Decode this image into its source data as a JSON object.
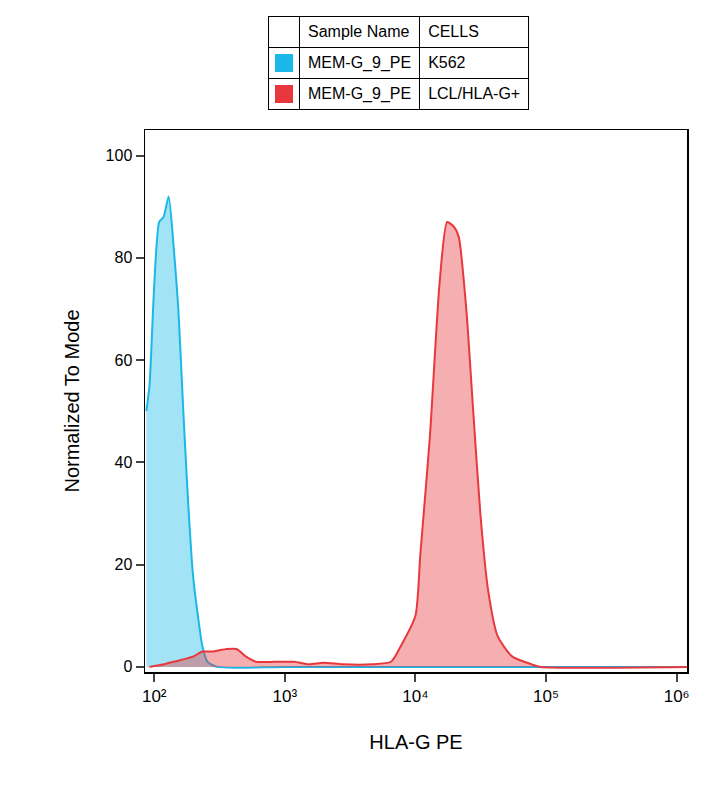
{
  "chart_data": {
    "type": "histogram_overlay",
    "xlabel": "HLA-G PE",
    "ylabel": "Normalized To Mode",
    "log": "x",
    "grid": false,
    "legend_header": [
      "Sample Name",
      "CELLS"
    ],
    "xlim": [
      85,
      1200000
    ],
    "ylim": [
      -1,
      105
    ],
    "xticks": [
      {
        "value": 100,
        "label": "10²"
      },
      {
        "value": 1000,
        "label": "10³"
      },
      {
        "value": 10000,
        "label": "10⁴"
      },
      {
        "value": 100000,
        "label": "10⁵"
      },
      {
        "value": 1000000,
        "label": "10⁶"
      }
    ],
    "yticks": [
      0,
      20,
      40,
      60,
      80,
      100
    ],
    "series": [
      {
        "name": "K562",
        "sample": "MEM-G_9_PE",
        "color": "#1ab8e8",
        "x": [
          87,
          92,
          109,
          118,
          129,
          141,
          153,
          167,
          182,
          198,
          216,
          234,
          256,
          303,
          1000,
          10000,
          100000,
          1200000
        ],
        "values": [
          50,
          55,
          87,
          88,
          92,
          82,
          70,
          50,
          32,
          18,
          10,
          4,
          1,
          0,
          0,
          0,
          0,
          0
        ]
      },
      {
        "name": "LCL/HLA-G+",
        "sample": "MEM-G_9_PE",
        "color": "#e8383d",
        "x": [
          92,
          109,
          141,
          198,
          234,
          278,
          359,
          427,
          506,
          600,
          840,
          1180,
          1530,
          1980,
          2780,
          4650,
          6500,
          7700,
          10000,
          10900,
          12900,
          15300,
          17500,
          19800,
          21500,
          24500,
          27700,
          31400,
          36000,
          42600,
          55200,
          77600,
          91000,
          1200000
        ],
        "values": [
          0,
          0.3,
          1,
          2,
          3,
          3,
          3.5,
          3.5,
          2,
          1,
          1,
          1,
          0.5,
          0.8,
          0.5,
          0.5,
          1,
          4,
          10,
          22,
          45,
          75,
          87,
          86,
          84,
          70,
          50,
          30,
          15,
          6,
          2,
          0.5,
          0,
          0
        ]
      }
    ]
  }
}
